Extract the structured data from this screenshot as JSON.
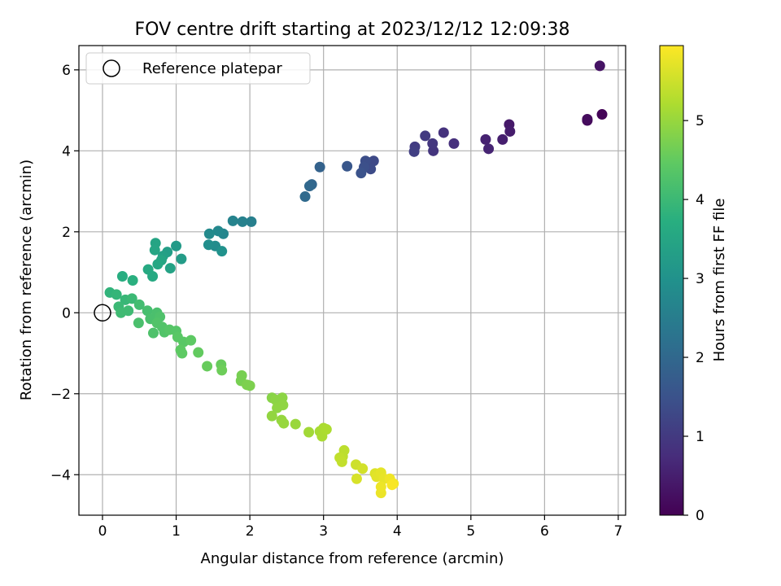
{
  "chart_data": {
    "type": "scatter",
    "title": "FOV centre drift starting at 2023/12/12 12:09:38",
    "xlabel": "Angular distance from reference (arcmin)",
    "ylabel": "Rotation from reference (arcmin)",
    "xlim": [
      -0.32,
      7.1
    ],
    "ylim": [
      -5.0,
      6.6
    ],
    "xticks": [
      0,
      1,
      2,
      3,
      4,
      5,
      6,
      7
    ],
    "yticks": [
      -4,
      -2,
      0,
      2,
      4,
      6
    ],
    "grid": true,
    "legend": {
      "position": "top-left",
      "entries": [
        "Reference platepar"
      ]
    },
    "reference_point": {
      "x": 0,
      "y": 0,
      "marker": "open-circle"
    },
    "colorbar": {
      "label": "Hours from first FF file",
      "colormap": "viridis",
      "range": [
        0,
        5.95
      ],
      "ticks": [
        0,
        1,
        2,
        3,
        4,
        5
      ]
    },
    "points": [
      {
        "x": 6.78,
        "y": 4.9,
        "h": 0.05
      },
      {
        "x": 6.58,
        "y": 4.75,
        "h": 0.12
      },
      {
        "x": 6.58,
        "y": 4.78,
        "h": 0.18
      },
      {
        "x": 6.75,
        "y": 6.1,
        "h": 0.3
      },
      {
        "x": 5.52,
        "y": 4.65,
        "h": 0.4
      },
      {
        "x": 5.53,
        "y": 4.48,
        "h": 0.45
      },
      {
        "x": 5.43,
        "y": 4.28,
        "h": 0.5
      },
      {
        "x": 5.2,
        "y": 4.28,
        "h": 0.55
      },
      {
        "x": 5.24,
        "y": 4.05,
        "h": 0.6
      },
      {
        "x": 4.77,
        "y": 4.18,
        "h": 0.8
      },
      {
        "x": 4.63,
        "y": 4.45,
        "h": 0.85
      },
      {
        "x": 4.49,
        "y": 4.0,
        "h": 0.9
      },
      {
        "x": 4.48,
        "y": 4.18,
        "h": 0.95
      },
      {
        "x": 4.38,
        "y": 4.37,
        "h": 1.0
      },
      {
        "x": 4.24,
        "y": 4.1,
        "h": 1.05
      },
      {
        "x": 4.23,
        "y": 3.98,
        "h": 1.1
      },
      {
        "x": 3.68,
        "y": 3.75,
        "h": 1.3
      },
      {
        "x": 3.64,
        "y": 3.55,
        "h": 1.35
      },
      {
        "x": 3.57,
        "y": 3.75,
        "h": 1.4
      },
      {
        "x": 3.55,
        "y": 3.6,
        "h": 1.45
      },
      {
        "x": 3.51,
        "y": 3.45,
        "h": 1.5
      },
      {
        "x": 3.32,
        "y": 3.62,
        "h": 1.6
      },
      {
        "x": 2.95,
        "y": 3.6,
        "h": 1.85
      },
      {
        "x": 2.84,
        "y": 3.17,
        "h": 1.95
      },
      {
        "x": 2.81,
        "y": 3.13,
        "h": 2.0
      },
      {
        "x": 2.75,
        "y": 2.87,
        "h": 2.05
      },
      {
        "x": 2.02,
        "y": 2.25,
        "h": 2.55
      },
      {
        "x": 1.9,
        "y": 2.25,
        "h": 2.6
      },
      {
        "x": 1.77,
        "y": 2.27,
        "h": 2.65
      },
      {
        "x": 1.64,
        "y": 1.95,
        "h": 2.7
      },
      {
        "x": 1.57,
        "y": 2.02,
        "h": 2.75
      },
      {
        "x": 1.45,
        "y": 1.95,
        "h": 2.8
      },
      {
        "x": 1.53,
        "y": 1.65,
        "h": 2.85
      },
      {
        "x": 1.44,
        "y": 1.68,
        "h": 2.9
      },
      {
        "x": 1.62,
        "y": 1.52,
        "h": 3.0
      },
      {
        "x": 1.0,
        "y": 1.65,
        "h": 3.2
      },
      {
        "x": 1.07,
        "y": 1.33,
        "h": 3.25
      },
      {
        "x": 0.88,
        "y": 1.5,
        "h": 3.3
      },
      {
        "x": 0.82,
        "y": 1.4,
        "h": 3.35
      },
      {
        "x": 0.92,
        "y": 1.1,
        "h": 3.4
      },
      {
        "x": 0.72,
        "y": 1.72,
        "h": 3.45
      },
      {
        "x": 0.71,
        "y": 1.55,
        "h": 3.5
      },
      {
        "x": 0.8,
        "y": 1.3,
        "h": 3.5
      },
      {
        "x": 0.75,
        "y": 1.2,
        "h": 3.55
      },
      {
        "x": 0.62,
        "y": 1.07,
        "h": 3.6
      },
      {
        "x": 0.68,
        "y": 0.9,
        "h": 3.6
      },
      {
        "x": 0.27,
        "y": 0.9,
        "h": 3.7
      },
      {
        "x": 0.41,
        "y": 0.8,
        "h": 3.75
      },
      {
        "x": 0.1,
        "y": 0.5,
        "h": 3.85
      },
      {
        "x": 0.19,
        "y": 0.45,
        "h": 3.9
      },
      {
        "x": 0.31,
        "y": 0.32,
        "h": 3.95
      },
      {
        "x": 0.4,
        "y": 0.35,
        "h": 4.0
      },
      {
        "x": 0.22,
        "y": 0.15,
        "h": 4.0
      },
      {
        "x": 0.25,
        "y": 0.0,
        "h": 4.05
      },
      {
        "x": 0.35,
        "y": 0.05,
        "h": 4.05
      },
      {
        "x": 0.5,
        "y": 0.2,
        "h": 4.1
      },
      {
        "x": 0.61,
        "y": 0.05,
        "h": 4.15
      },
      {
        "x": 0.49,
        "y": -0.25,
        "h": 4.2
      },
      {
        "x": 0.65,
        "y": -0.15,
        "h": 4.2
      },
      {
        "x": 0.74,
        "y": 0.0,
        "h": 4.2
      },
      {
        "x": 0.78,
        "y": -0.1,
        "h": 4.25
      },
      {
        "x": 0.69,
        "y": -0.5,
        "h": 4.25
      },
      {
        "x": 0.74,
        "y": -0.25,
        "h": 4.3
      },
      {
        "x": 0.81,
        "y": -0.35,
        "h": 4.3
      },
      {
        "x": 0.84,
        "y": -0.48,
        "h": 4.3
      },
      {
        "x": 0.91,
        "y": -0.42,
        "h": 4.35
      },
      {
        "x": 1.0,
        "y": -0.45,
        "h": 4.35
      },
      {
        "x": 1.02,
        "y": -0.6,
        "h": 4.4
      },
      {
        "x": 1.1,
        "y": -0.72,
        "h": 4.4
      },
      {
        "x": 1.06,
        "y": -0.92,
        "h": 4.45
      },
      {
        "x": 1.08,
        "y": -1.0,
        "h": 4.45
      },
      {
        "x": 1.2,
        "y": -0.68,
        "h": 4.45
      },
      {
        "x": 1.3,
        "y": -0.98,
        "h": 4.5
      },
      {
        "x": 1.42,
        "y": -1.32,
        "h": 4.55
      },
      {
        "x": 1.61,
        "y": -1.28,
        "h": 4.55
      },
      {
        "x": 1.62,
        "y": -1.42,
        "h": 4.6
      },
      {
        "x": 1.89,
        "y": -1.55,
        "h": 4.7
      },
      {
        "x": 1.88,
        "y": -1.68,
        "h": 4.7
      },
      {
        "x": 1.96,
        "y": -1.78,
        "h": 4.75
      },
      {
        "x": 2.0,
        "y": -1.8,
        "h": 4.75
      },
      {
        "x": 2.3,
        "y": -2.1,
        "h": 4.85
      },
      {
        "x": 2.35,
        "y": -2.15,
        "h": 4.9
      },
      {
        "x": 2.44,
        "y": -2.1,
        "h": 4.9
      },
      {
        "x": 2.37,
        "y": -2.35,
        "h": 4.92
      },
      {
        "x": 2.45,
        "y": -2.28,
        "h": 4.92
      },
      {
        "x": 2.3,
        "y": -2.55,
        "h": 4.95
      },
      {
        "x": 2.43,
        "y": -2.65,
        "h": 4.98
      },
      {
        "x": 2.46,
        "y": -2.73,
        "h": 5.0
      },
      {
        "x": 2.62,
        "y": -2.75,
        "h": 5.02
      },
      {
        "x": 2.8,
        "y": -2.95,
        "h": 5.1
      },
      {
        "x": 2.95,
        "y": -2.93,
        "h": 5.15
      },
      {
        "x": 3.0,
        "y": -2.85,
        "h": 5.18
      },
      {
        "x": 2.98,
        "y": -3.05,
        "h": 5.18
      },
      {
        "x": 3.04,
        "y": -2.88,
        "h": 5.2
      },
      {
        "x": 3.28,
        "y": -3.4,
        "h": 5.35
      },
      {
        "x": 3.26,
        "y": -3.55,
        "h": 5.35
      },
      {
        "x": 3.22,
        "y": -3.58,
        "h": 5.38
      },
      {
        "x": 3.25,
        "y": -3.68,
        "h": 5.4
      },
      {
        "x": 3.44,
        "y": -3.75,
        "h": 5.5
      },
      {
        "x": 3.53,
        "y": -3.85,
        "h": 5.55
      },
      {
        "x": 3.45,
        "y": -4.1,
        "h": 5.6
      },
      {
        "x": 3.7,
        "y": -3.97,
        "h": 5.65
      },
      {
        "x": 3.72,
        "y": -4.05,
        "h": 5.7
      },
      {
        "x": 3.78,
        "y": -3.95,
        "h": 5.72
      },
      {
        "x": 3.82,
        "y": -4.1,
        "h": 5.75
      },
      {
        "x": 3.78,
        "y": -4.45,
        "h": 5.78
      },
      {
        "x": 3.78,
        "y": -4.3,
        "h": 5.8
      },
      {
        "x": 3.9,
        "y": -4.1,
        "h": 5.82
      },
      {
        "x": 3.95,
        "y": -4.22,
        "h": 5.85
      },
      {
        "x": 3.93,
        "y": -4.25,
        "h": 5.9
      }
    ]
  }
}
